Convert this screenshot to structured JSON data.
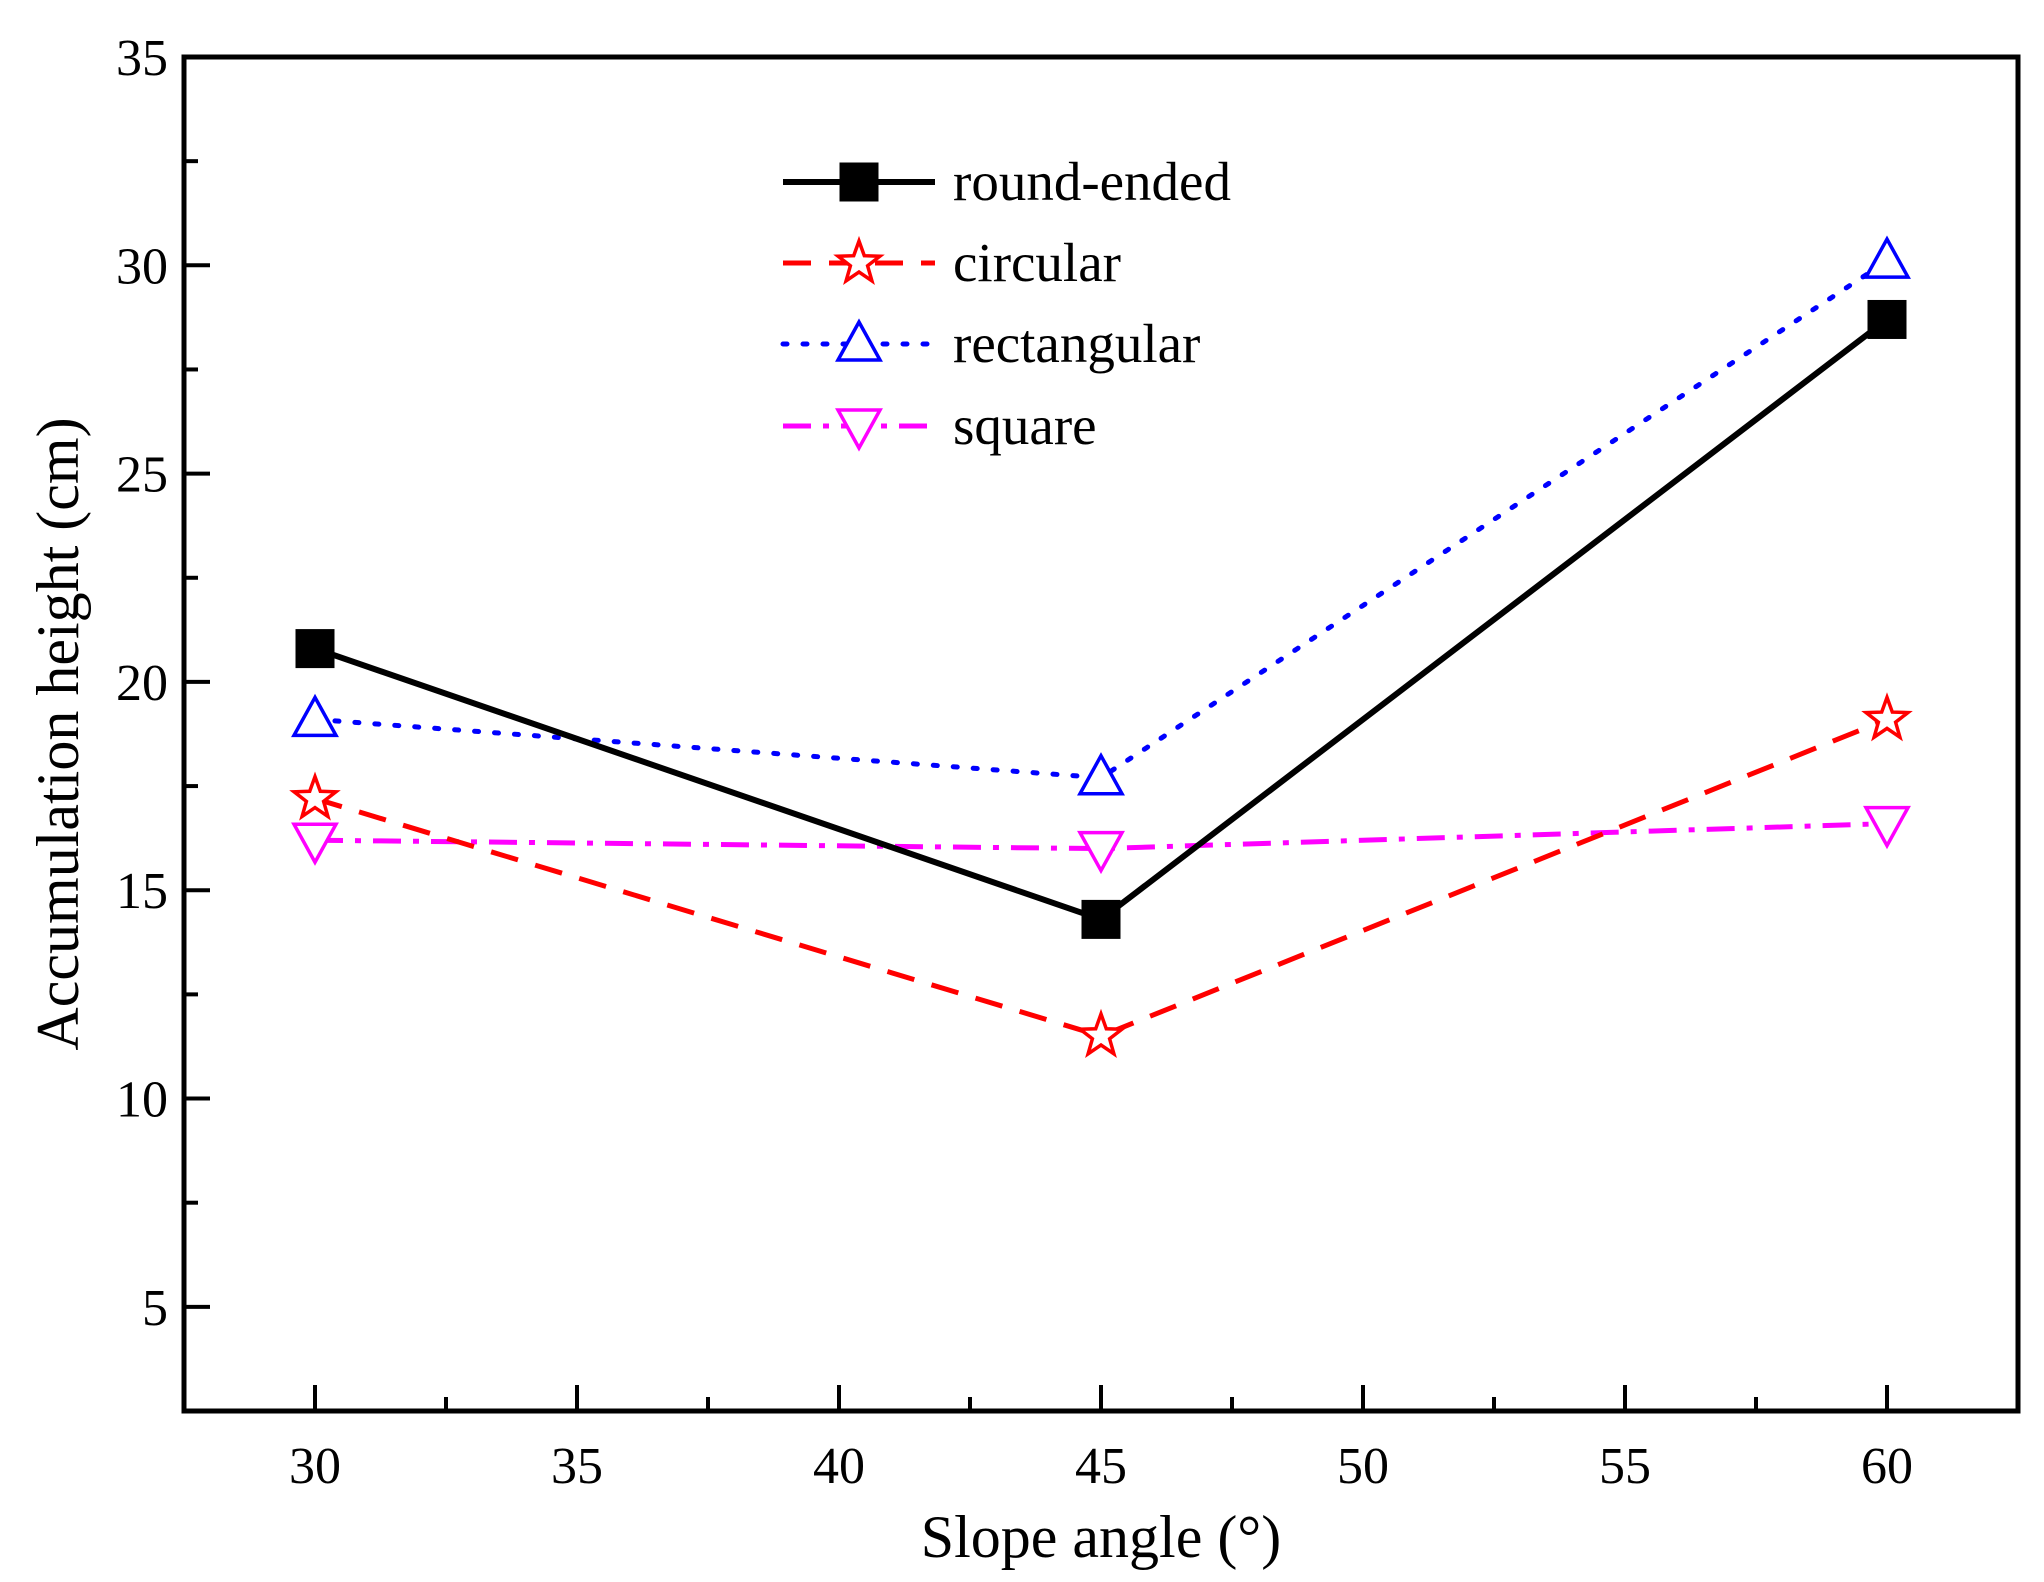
{
  "chart_data": {
    "type": "line",
    "title": "",
    "xlabel": "Slope angle (°)",
    "ylabel": "Accumulation height (cm)",
    "xlim": [
      27.5,
      62.5
    ],
    "ylim": [
      2.5,
      35
    ],
    "xticks": [
      30,
      35,
      40,
      45,
      50,
      55,
      60
    ],
    "yticks": [
      5,
      10,
      15,
      20,
      25,
      30,
      35
    ],
    "x": [
      30,
      45,
      60
    ],
    "legend_position": "top-center",
    "series": [
      {
        "name": "round-ended",
        "values": [
          20.8,
          14.3,
          28.7
        ],
        "color": "#000000",
        "marker": "filled-square",
        "line": "solid"
      },
      {
        "name": "circular",
        "values": [
          17.2,
          11.5,
          19.1
        ],
        "color": "#ff0000",
        "marker": "open-star",
        "line": "dash"
      },
      {
        "name": "rectangular",
        "values": [
          19.1,
          17.7,
          30.1
        ],
        "color": "#0000ff",
        "marker": "open-triangle-up",
        "line": "dot"
      },
      {
        "name": "square",
        "values": [
          16.2,
          16.0,
          16.6
        ],
        "color": "#ff00ff",
        "marker": "open-triangle-down",
        "line": "dash-dot"
      }
    ]
  }
}
